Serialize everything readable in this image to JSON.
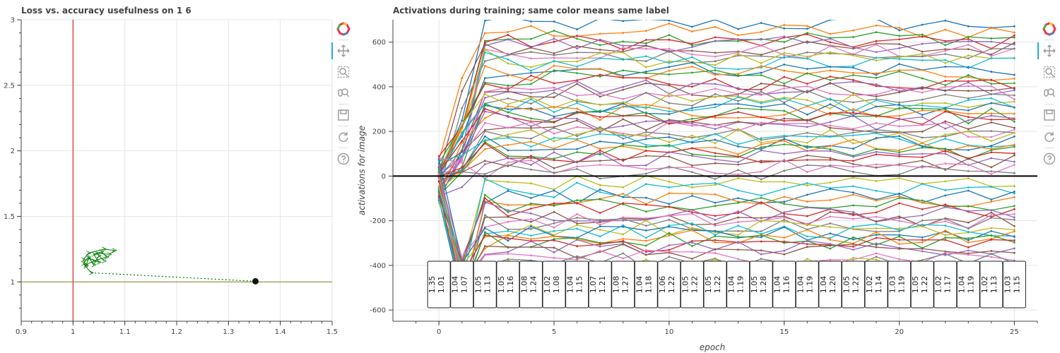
{
  "chart_data": [
    {
      "type": "scatter",
      "title": "Loss vs. accuracy usefulness on 1 6",
      "xlabel": "",
      "ylabel": "",
      "xlim": [
        0.9,
        1.5
      ],
      "ylim": [
        0.7,
        3.0
      ],
      "x_ticks": [
        "0.9",
        "1",
        "1.1",
        "1.2",
        "1.3",
        "1.4",
        "1.5"
      ],
      "y_ticks": [
        "1",
        "1.5",
        "2",
        "2.5",
        "3"
      ],
      "reference_lines": {
        "vertical_x": 1.0,
        "horizontal_y": 1.0,
        "vertical_color": "#d62728",
        "horizontal_color": "#8c8c3c"
      },
      "trajectory_color": "#008000",
      "trajectory": [
        [
          1.035,
          1.07
        ],
        [
          1.02,
          1.14
        ],
        [
          1.03,
          1.19
        ],
        [
          1.04,
          1.13
        ],
        [
          1.05,
          1.2
        ],
        [
          1.06,
          1.16
        ],
        [
          1.045,
          1.22
        ],
        [
          1.07,
          1.21
        ],
        [
          1.08,
          1.24
        ],
        [
          1.06,
          1.25
        ],
        [
          1.03,
          1.22
        ],
        [
          1.02,
          1.17
        ],
        [
          1.025,
          1.12
        ],
        [
          1.03,
          1.18
        ],
        [
          1.05,
          1.15
        ],
        [
          1.04,
          1.21
        ],
        [
          1.055,
          1.23
        ],
        [
          1.065,
          1.19
        ],
        [
          1.04,
          1.16
        ],
        [
          1.025,
          1.13
        ]
      ],
      "final_point": {
        "x": 1.352,
        "y": 1.005
      },
      "grid": true
    },
    {
      "type": "line",
      "title": "Activations during training; same color means same label",
      "xlabel": "epoch",
      "ylabel": "activations for image",
      "xlim": [
        -2,
        26
      ],
      "ylim": [
        -650,
        700
      ],
      "x_ticks": [
        "0",
        "5",
        "10",
        "15",
        "20",
        "25"
      ],
      "y_ticks": [
        "-600",
        "-400",
        "-200",
        "0",
        "200",
        "400",
        "600"
      ],
      "zero_line": 0,
      "grid": true,
      "epochs": [
        0,
        1,
        2,
        3,
        4,
        5,
        6,
        7,
        8,
        9,
        10,
        11,
        12,
        13,
        14,
        15,
        16,
        17,
        18,
        19,
        20,
        21,
        22,
        23,
        24,
        25
      ],
      "series_note_colors": [
        "#1f77b4",
        "#ff7f0e",
        "#2ca02c",
        "#d62728",
        "#9467bd",
        "#8c564b",
        "#e377c2",
        "#7f7f7f",
        "#bcbd22",
        "#17becf"
      ],
      "series_levels": [
        680,
        650,
        620,
        600,
        590,
        570,
        555,
        540,
        520,
        505,
        480,
        460,
        440,
        420,
        400,
        385,
        370,
        350,
        335,
        320,
        300,
        285,
        270,
        255,
        240,
        225,
        210,
        195,
        180,
        165,
        150,
        130,
        110,
        95,
        80,
        60,
        40,
        20,
        -30,
        -60,
        -90,
        -110,
        -130,
        -150,
        -170,
        -190,
        -200,
        -215,
        -230,
        -245,
        -260,
        -275,
        -290,
        -305,
        -320,
        -340,
        -360,
        -380,
        -400,
        -420
      ],
      "annotations": [
        [
          "1.35",
          "1.01"
        ],
        [
          "1.04",
          "1.07"
        ],
        [
          "1.05",
          "1.13"
        ],
        [
          "1.05",
          "1.16"
        ],
        [
          "1.08",
          "1.24"
        ],
        [
          "1.02",
          "1.08"
        ],
        [
          "1.04",
          "1.15"
        ],
        [
          "1.07",
          "1.21"
        ],
        [
          "1.08",
          "1.27"
        ],
        [
          "1.04",
          "1.18"
        ],
        [
          "1.06",
          "1.22"
        ],
        [
          "1.05",
          "1.22"
        ],
        [
          "1.05",
          "1.22"
        ],
        [
          "1.04",
          "1.19"
        ],
        [
          "1.05",
          "1.28"
        ],
        [
          "1.04",
          "1.16"
        ],
        [
          "1.04",
          "1.19"
        ],
        [
          "1.04",
          "1.20"
        ],
        [
          "1.05",
          "1.22"
        ],
        [
          "1.02",
          "1.14"
        ],
        [
          "1.03",
          "1.19"
        ],
        [
          "1.05",
          "1.22"
        ],
        [
          "1.02",
          "1.17"
        ],
        [
          "1.04",
          "1.19"
        ],
        [
          "1.02",
          "1.13"
        ],
        [
          "1.03",
          "1.15"
        ]
      ]
    }
  ],
  "toolbar": {
    "icons": [
      "bokeh-logo-icon",
      "pan-icon",
      "box-zoom-icon",
      "wheel-zoom-icon",
      "save-icon",
      "reset-icon",
      "help-icon"
    ]
  }
}
